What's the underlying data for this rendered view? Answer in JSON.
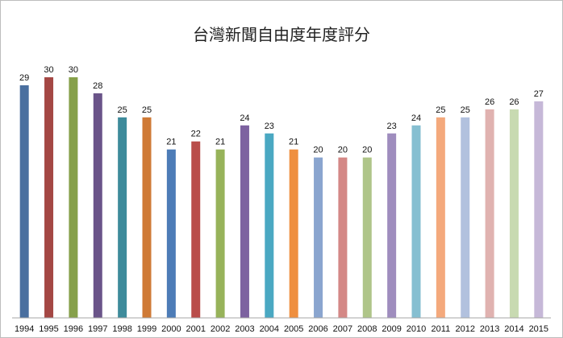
{
  "chart_data": {
    "type": "bar",
    "title": "台灣新聞自由度年度評分",
    "xlabel": "",
    "ylabel": "",
    "ylim": [
      0,
      30
    ],
    "grid": false,
    "legend": "none",
    "categories": [
      "1994",
      "1995",
      "1996",
      "1997",
      "1998",
      "1999",
      "2000",
      "2001",
      "2002",
      "2003",
      "2004",
      "2005",
      "2006",
      "2007",
      "2008",
      "2009",
      "2010",
      "2011",
      "2012",
      "2013",
      "2014",
      "2015"
    ],
    "values": [
      29,
      30,
      30,
      28,
      25,
      25,
      21,
      22,
      21,
      24,
      23,
      21,
      20,
      20,
      20,
      23,
      24,
      25,
      25,
      26,
      26,
      27
    ],
    "value_labels": [
      "29",
      "30",
      "30",
      "28",
      "25",
      "25",
      "21",
      "22",
      "21",
      "24",
      "23",
      "21",
      "20",
      "20",
      "20",
      "23",
      "24",
      "25",
      "25",
      "26",
      "26",
      "27"
    ],
    "colors": [
      "#4a6f9f",
      "#a44744",
      "#86a04a",
      "#6a5489",
      "#3e8b9b",
      "#cf7a36",
      "#4d7cb7",
      "#b94d4a",
      "#97b35a",
      "#7d62a0",
      "#4aa8c2",
      "#ef8f3f",
      "#8aa5cf",
      "#d48886",
      "#afc589",
      "#9f8dbe",
      "#86bfd1",
      "#f4a97c",
      "#b2c1de",
      "#e0b2b0",
      "#c8dab1",
      "#c6b8d8"
    ]
  }
}
